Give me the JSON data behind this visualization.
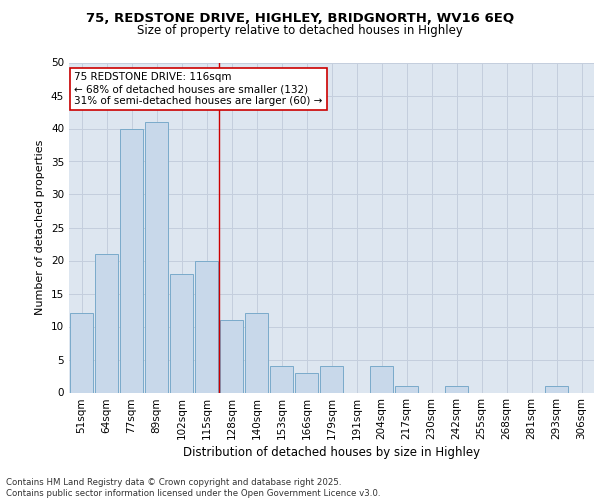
{
  "title1": "75, REDSTONE DRIVE, HIGHLEY, BRIDGNORTH, WV16 6EQ",
  "title2": "Size of property relative to detached houses in Highley",
  "xlabel": "Distribution of detached houses by size in Highley",
  "ylabel": "Number of detached properties",
  "bar_color": "#c8d8ea",
  "bar_edge_color": "#7aaaca",
  "background_color": "#dde6f0",
  "fig_background": "#ffffff",
  "categories": [
    "51sqm",
    "64sqm",
    "77sqm",
    "89sqm",
    "102sqm",
    "115sqm",
    "128sqm",
    "140sqm",
    "153sqm",
    "166sqm",
    "179sqm",
    "191sqm",
    "204sqm",
    "217sqm",
    "230sqm",
    "242sqm",
    "255sqm",
    "268sqm",
    "281sqm",
    "293sqm",
    "306sqm"
  ],
  "values": [
    12,
    21,
    40,
    41,
    18,
    20,
    11,
    12,
    4,
    3,
    4,
    0,
    4,
    1,
    0,
    1,
    0,
    0,
    0,
    1,
    0
  ],
  "ylim": [
    0,
    50
  ],
  "yticks": [
    0,
    5,
    10,
    15,
    20,
    25,
    30,
    35,
    40,
    45,
    50
  ],
  "vline_x": 5.5,
  "vline_color": "#cc0000",
  "annotation_text": "75 REDSTONE DRIVE: 116sqm\n← 68% of detached houses are smaller (132)\n31% of semi-detached houses are larger (60) →",
  "annotation_box_color": "#ffffff",
  "annotation_box_edge": "#cc0000",
  "footer_text": "Contains HM Land Registry data © Crown copyright and database right 2025.\nContains public sector information licensed under the Open Government Licence v3.0.",
  "grid_color": "#c4cedd",
  "title1_fontsize": 9.5,
  "title2_fontsize": 8.5,
  "ylabel_fontsize": 8,
  "xlabel_fontsize": 8.5,
  "tick_fontsize": 7.5,
  "ann_fontsize": 7.5,
  "footer_fontsize": 6.2
}
